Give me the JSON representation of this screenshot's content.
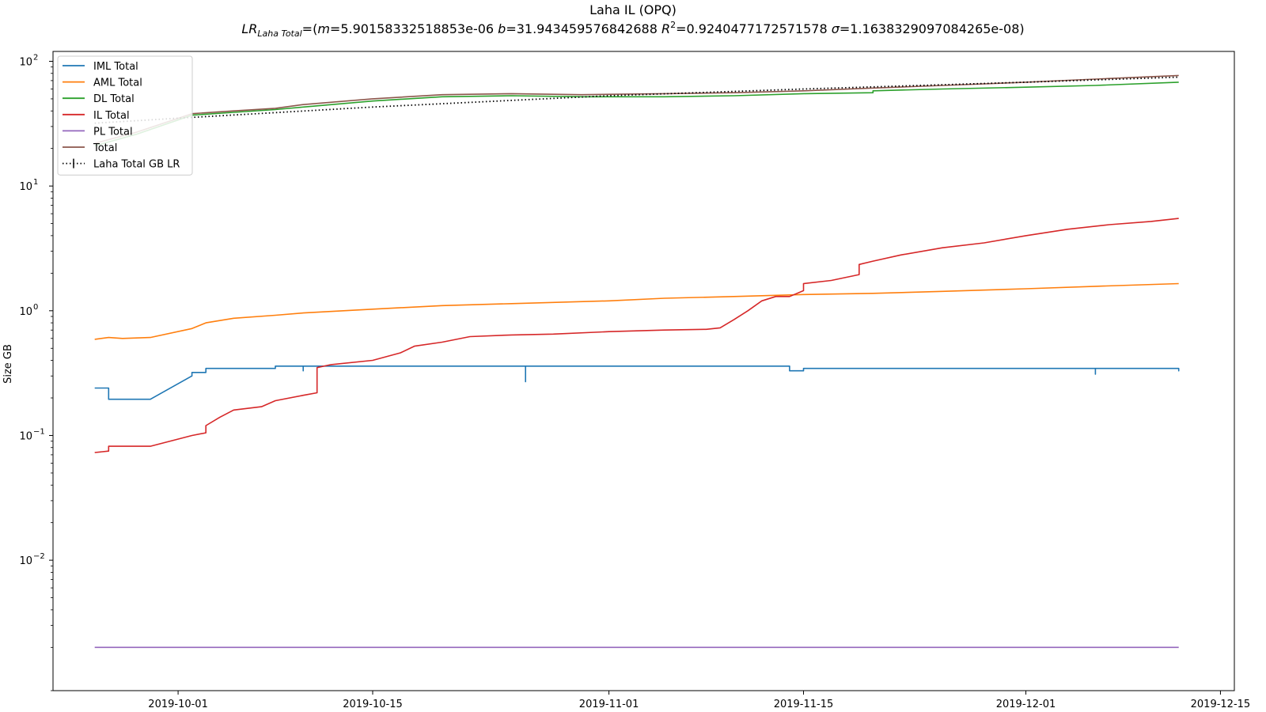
{
  "chart_data": {
    "type": "line",
    "title": "Laha IL (OPQ)",
    "subtitle": {
      "lr_label": "LR",
      "lr_subscript": "Laha Total",
      "m_label": "m",
      "m_value": "5.90158332518853e-06",
      "b_label": "b",
      "b_value": "31.943459576842688",
      "r2_label": "R",
      "r2_exp": "2",
      "r2_value": "0.9240477172571578",
      "sigma_label": "σ",
      "sigma_value": "1.1638329097084265e-08"
    },
    "xlabel": "",
    "ylabel": "Size GB",
    "yscale": "log",
    "ylim": [
      0.0009,
      120
    ],
    "xlim": [
      "2019-09-22",
      "2019-12-16"
    ],
    "x_ticks": [
      "2019-10-01",
      "2019-10-15",
      "2019-11-01",
      "2019-11-15",
      "2019-12-01",
      "2019-12-15"
    ],
    "y_ticks": [
      {
        "value": 0.01,
        "base": "10",
        "exp": "−2"
      },
      {
        "value": 0.1,
        "base": "10",
        "exp": "−1"
      },
      {
        "value": 1,
        "base": "10",
        "exp": "0"
      },
      {
        "value": 10,
        "base": "10",
        "exp": "1"
      },
      {
        "value": 100,
        "base": "10",
        "exp": "2"
      }
    ],
    "grid": false,
    "legend_position": "top-left",
    "series": [
      {
        "name": "IML Total",
        "color": "#1f77b4",
        "style": "solid",
        "points": [
          [
            "2019-09-25",
            0.24
          ],
          [
            "2019-09-26",
            0.24
          ],
          [
            "2019-09-26",
            0.22
          ],
          [
            "2019-09-26",
            0.24
          ],
          [
            "2019-09-26",
            0.2
          ],
          [
            "2019-09-26",
            0.22
          ],
          [
            "2019-09-26",
            0.195
          ],
          [
            "2019-09-29",
            0.195
          ],
          [
            "2019-10-02",
            0.3
          ],
          [
            "2019-10-02",
            0.32
          ],
          [
            "2019-10-03",
            0.32
          ],
          [
            "2019-10-03",
            0.345
          ],
          [
            "2019-10-08",
            0.345
          ],
          [
            "2019-10-08",
            0.36
          ],
          [
            "2019-10-10",
            0.36
          ],
          [
            "2019-10-10",
            0.33
          ],
          [
            "2019-10-10",
            0.36
          ],
          [
            "2019-10-26",
            0.36
          ],
          [
            "2019-10-26",
            0.27
          ],
          [
            "2019-10-26",
            0.36
          ],
          [
            "2019-11-14",
            0.36
          ],
          [
            "2019-11-14",
            0.33
          ],
          [
            "2019-11-15",
            0.33
          ],
          [
            "2019-11-15",
            0.345
          ],
          [
            "2019-12-06",
            0.345
          ],
          [
            "2019-12-06",
            0.31
          ],
          [
            "2019-12-06",
            0.345
          ],
          [
            "2019-12-12",
            0.345
          ],
          [
            "2019-12-12",
            0.33
          ],
          [
            "2019-12-12",
            0.345
          ]
        ]
      },
      {
        "name": "AML Total",
        "color": "#ff7f0e",
        "style": "solid",
        "points": [
          [
            "2019-09-25",
            0.59
          ],
          [
            "2019-09-26",
            0.61
          ],
          [
            "2019-09-27",
            0.6
          ],
          [
            "2019-09-29",
            0.61
          ],
          [
            "2019-10-02",
            0.72
          ],
          [
            "2019-10-03",
            0.8
          ],
          [
            "2019-10-05",
            0.87
          ],
          [
            "2019-10-08",
            0.92
          ],
          [
            "2019-10-10",
            0.96
          ],
          [
            "2019-10-15",
            1.03
          ],
          [
            "2019-10-20",
            1.1
          ],
          [
            "2019-10-25",
            1.14
          ],
          [
            "2019-11-01",
            1.2
          ],
          [
            "2019-11-05",
            1.26
          ],
          [
            "2019-11-10",
            1.3
          ],
          [
            "2019-11-15",
            1.35
          ],
          [
            "2019-11-20",
            1.38
          ],
          [
            "2019-11-25",
            1.43
          ],
          [
            "2019-12-01",
            1.5
          ],
          [
            "2019-12-06",
            1.57
          ],
          [
            "2019-12-12",
            1.65
          ]
        ]
      },
      {
        "name": "DL Total",
        "color": "#2ca02c",
        "style": "solid",
        "points": [
          [
            "2019-09-25",
            21
          ],
          [
            "2019-09-28",
            26
          ],
          [
            "2019-10-02",
            37
          ],
          [
            "2019-10-05",
            39
          ],
          [
            "2019-10-08",
            41
          ],
          [
            "2019-10-10",
            43
          ],
          [
            "2019-10-15",
            48
          ],
          [
            "2019-10-20",
            52
          ],
          [
            "2019-10-25",
            53
          ],
          [
            "2019-10-30",
            52
          ],
          [
            "2019-11-05",
            52
          ],
          [
            "2019-11-10",
            53
          ],
          [
            "2019-11-15",
            55
          ],
          [
            "2019-11-20",
            56
          ],
          [
            "2019-11-20",
            58
          ],
          [
            "2019-11-25",
            60
          ],
          [
            "2019-12-01",
            62
          ],
          [
            "2019-12-06",
            64
          ],
          [
            "2019-12-12",
            68
          ]
        ]
      },
      {
        "name": "IL Total",
        "color": "#d62728",
        "style": "solid",
        "points": [
          [
            "2019-09-25",
            0.073
          ],
          [
            "2019-09-26",
            0.075
          ],
          [
            "2019-09-26",
            0.082
          ],
          [
            "2019-09-29",
            0.082
          ],
          [
            "2019-10-02",
            0.1
          ],
          [
            "2019-10-03",
            0.105
          ],
          [
            "2019-10-03",
            0.12
          ],
          [
            "2019-10-04",
            0.14
          ],
          [
            "2019-10-05",
            0.16
          ],
          [
            "2019-10-07",
            0.17
          ],
          [
            "2019-10-08",
            0.19
          ],
          [
            "2019-10-10",
            0.21
          ],
          [
            "2019-10-11",
            0.22
          ],
          [
            "2019-10-11",
            0.35
          ],
          [
            "2019-10-12",
            0.37
          ],
          [
            "2019-10-15",
            0.4
          ],
          [
            "2019-10-17",
            0.46
          ],
          [
            "2019-10-18",
            0.52
          ],
          [
            "2019-10-20",
            0.56
          ],
          [
            "2019-10-22",
            0.62
          ],
          [
            "2019-10-25",
            0.64
          ],
          [
            "2019-10-28",
            0.65
          ],
          [
            "2019-11-01",
            0.68
          ],
          [
            "2019-11-05",
            0.7
          ],
          [
            "2019-11-08",
            0.71
          ],
          [
            "2019-11-09",
            0.73
          ],
          [
            "2019-11-10",
            0.85
          ],
          [
            "2019-11-11",
            1.0
          ],
          [
            "2019-11-12",
            1.2
          ],
          [
            "2019-11-13",
            1.3
          ],
          [
            "2019-11-14",
            1.3
          ],
          [
            "2019-11-15",
            1.45
          ],
          [
            "2019-11-15",
            1.65
          ],
          [
            "2019-11-17",
            1.75
          ],
          [
            "2019-11-19",
            1.95
          ],
          [
            "2019-11-19",
            2.35
          ],
          [
            "2019-11-20",
            2.5
          ],
          [
            "2019-11-22",
            2.8
          ],
          [
            "2019-11-25",
            3.2
          ],
          [
            "2019-11-28",
            3.5
          ],
          [
            "2019-12-01",
            4.0
          ],
          [
            "2019-12-04",
            4.5
          ],
          [
            "2019-12-07",
            4.9
          ],
          [
            "2019-12-10",
            5.2
          ],
          [
            "2019-12-12",
            5.5
          ]
        ]
      },
      {
        "name": "PL Total",
        "color": "#9467bd",
        "style": "solid",
        "points": [
          [
            "2019-09-25",
            0.002
          ],
          [
            "2019-12-12",
            0.002
          ]
        ]
      },
      {
        "name": "Total",
        "color": "#8c564b",
        "style": "solid",
        "points": [
          [
            "2019-09-25",
            22
          ],
          [
            "2019-09-28",
            27
          ],
          [
            "2019-10-02",
            38
          ],
          [
            "2019-10-05",
            40
          ],
          [
            "2019-10-08",
            42
          ],
          [
            "2019-10-10",
            45
          ],
          [
            "2019-10-15",
            50
          ],
          [
            "2019-10-20",
            54
          ],
          [
            "2019-10-25",
            55
          ],
          [
            "2019-10-30",
            54
          ],
          [
            "2019-11-05",
            55
          ],
          [
            "2019-11-10",
            56
          ],
          [
            "2019-11-15",
            58
          ],
          [
            "2019-11-20",
            61
          ],
          [
            "2019-11-25",
            64
          ],
          [
            "2019-12-01",
            68
          ],
          [
            "2019-12-06",
            72
          ],
          [
            "2019-12-12",
            77
          ]
        ]
      },
      {
        "name": "Laha Total GB LR",
        "color": "#000000",
        "style": "dotted",
        "points": [
          [
            "2019-09-25",
            31.9
          ],
          [
            "2019-10-01",
            35
          ],
          [
            "2019-10-15",
            43
          ],
          [
            "2019-11-01",
            53
          ],
          [
            "2019-11-15",
            60
          ],
          [
            "2019-12-01",
            68
          ],
          [
            "2019-12-12",
            74.6
          ]
        ]
      }
    ]
  }
}
